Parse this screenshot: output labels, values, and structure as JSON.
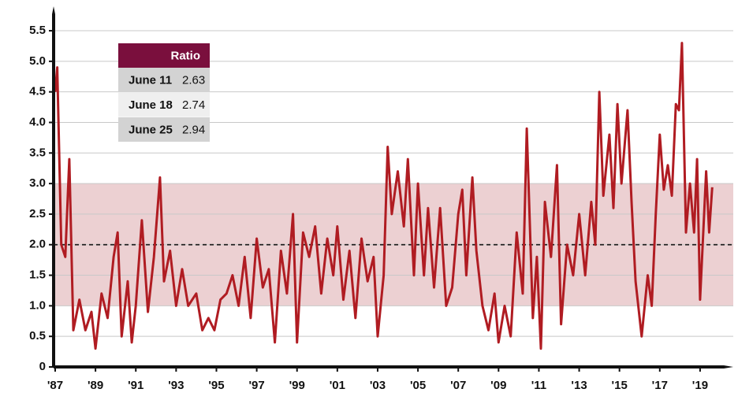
{
  "chart_data": {
    "type": "line",
    "x": [
      1987.0,
      1987.1,
      1987.3,
      1987.5,
      1987.7,
      1987.9,
      1988.2,
      1988.5,
      1988.8,
      1989.0,
      1989.3,
      1989.6,
      1989.9,
      1990.1,
      1990.3,
      1990.6,
      1990.8,
      1991.0,
      1991.3,
      1991.6,
      1991.9,
      1992.2,
      1992.4,
      1992.7,
      1993.0,
      1993.3,
      1993.6,
      1994.0,
      1994.3,
      1994.6,
      1994.9,
      1995.2,
      1995.5,
      1995.8,
      1996.1,
      1996.4,
      1996.7,
      1997.0,
      1997.3,
      1997.6,
      1997.9,
      1998.2,
      1998.5,
      1998.8,
      1999.0,
      1999.3,
      1999.6,
      1999.9,
      2000.2,
      2000.5,
      2000.8,
      2001.0,
      2001.3,
      2001.6,
      2001.9,
      2002.2,
      2002.5,
      2002.8,
      2003.0,
      2003.3,
      2003.5,
      2003.7,
      2004.0,
      2004.3,
      2004.5,
      2004.8,
      2005.0,
      2005.3,
      2005.5,
      2005.8,
      2006.1,
      2006.4,
      2006.7,
      2007.0,
      2007.2,
      2007.4,
      2007.7,
      2007.9,
      2008.2,
      2008.5,
      2008.8,
      2009.0,
      2009.3,
      2009.6,
      2009.9,
      2010.2,
      2010.4,
      2010.7,
      2010.9,
      2011.1,
      2011.3,
      2011.6,
      2011.9,
      2012.1,
      2012.4,
      2012.7,
      2013.0,
      2013.3,
      2013.6,
      2013.8,
      2014.0,
      2014.2,
      2014.5,
      2014.7,
      2014.9,
      2015.1,
      2015.4,
      2015.6,
      2015.8,
      2016.1,
      2016.4,
      2016.6,
      2016.8,
      2017.0,
      2017.2,
      2017.4,
      2017.6,
      2017.8,
      2017.95,
      2018.1,
      2018.3,
      2018.5,
      2018.7,
      2018.85,
      2019.0,
      2019.3,
      2019.45,
      2019.6
    ],
    "series": [
      {
        "color": "#b01c22",
        "values": [
          4.5,
          4.9,
          2.0,
          1.8,
          3.4,
          0.6,
          1.1,
          0.6,
          0.9,
          0.3,
          1.2,
          0.8,
          1.8,
          2.2,
          0.5,
          1.4,
          0.4,
          1.0,
          2.4,
          0.9,
          1.8,
          3.1,
          1.4,
          1.9,
          1.0,
          1.6,
          1.0,
          1.2,
          0.6,
          0.8,
          0.6,
          1.1,
          1.2,
          1.5,
          1.0,
          1.8,
          0.8,
          2.1,
          1.3,
          1.6,
          0.4,
          1.9,
          1.2,
          2.5,
          0.4,
          2.2,
          1.8,
          2.3,
          1.2,
          2.1,
          1.5,
          2.3,
          1.1,
          1.9,
          0.8,
          2.1,
          1.4,
          1.8,
          0.5,
          1.5,
          3.6,
          2.5,
          3.2,
          2.3,
          3.4,
          1.5,
          3.0,
          1.5,
          2.6,
          1.3,
          2.6,
          1.0,
          1.3,
          2.5,
          2.9,
          1.5,
          3.1,
          1.9,
          1.0,
          0.6,
          1.2,
          0.4,
          1.0,
          0.5,
          2.2,
          1.2,
          3.9,
          0.8,
          1.8,
          0.3,
          2.7,
          1.8,
          3.3,
          0.7,
          2.0,
          1.5,
          2.5,
          1.5,
          2.7,
          2.0,
          4.5,
          2.8,
          3.8,
          2.6,
          4.3,
          3.0,
          4.2,
          2.7,
          1.4,
          0.5,
          1.5,
          1.0,
          2.5,
          3.8,
          2.9,
          3.3,
          2.8,
          4.3,
          4.2,
          5.3,
          2.2,
          3.0,
          2.2,
          3.4,
          1.1,
          3.2,
          2.2,
          2.94
        ]
      }
    ],
    "xlim": [
      1987,
      2020.6
    ],
    "xticks": [
      {
        "value": 1987,
        "label": "'87"
      },
      {
        "value": 1989,
        "label": "'89"
      },
      {
        "value": 1991,
        "label": "'91"
      },
      {
        "value": 1993,
        "label": "'93"
      },
      {
        "value": 1995,
        "label": "'95"
      },
      {
        "value": 1997,
        "label": "'97"
      },
      {
        "value": 1999,
        "label": "'99"
      },
      {
        "value": 2001,
        "label": "'01"
      },
      {
        "value": 2003,
        "label": "'03"
      },
      {
        "value": 2005,
        "label": "'05"
      },
      {
        "value": 2007,
        "label": "'07"
      },
      {
        "value": 2009,
        "label": "'09"
      },
      {
        "value": 2011,
        "label": "'11"
      },
      {
        "value": 2013,
        "label": "'13"
      },
      {
        "value": 2015,
        "label": "'15"
      },
      {
        "value": 2017,
        "label": "'17"
      },
      {
        "value": 2019,
        "label": "'19"
      }
    ],
    "ylim": [
      0,
      5.9
    ],
    "yticks": [
      0,
      0.5,
      {
        "value": 1,
        "label": "1.0"
      },
      1.5,
      {
        "value": 2,
        "label": "2.0"
      },
      2.5,
      {
        "value": 3,
        "label": "3.0"
      },
      3.5,
      {
        "value": 4,
        "label": "4.0"
      },
      4.5,
      {
        "value": 5,
        "label": "5.0"
      },
      5.5
    ],
    "grid": true,
    "band": [
      1,
      3
    ],
    "band_color": "#ecd0d2",
    "reference_line": 2,
    "table": {
      "header": "Ratio",
      "rows": [
        [
          "June 11",
          2.63
        ],
        [
          "June 18",
          2.74
        ],
        [
          "June 25",
          2.94
        ]
      ]
    }
  }
}
